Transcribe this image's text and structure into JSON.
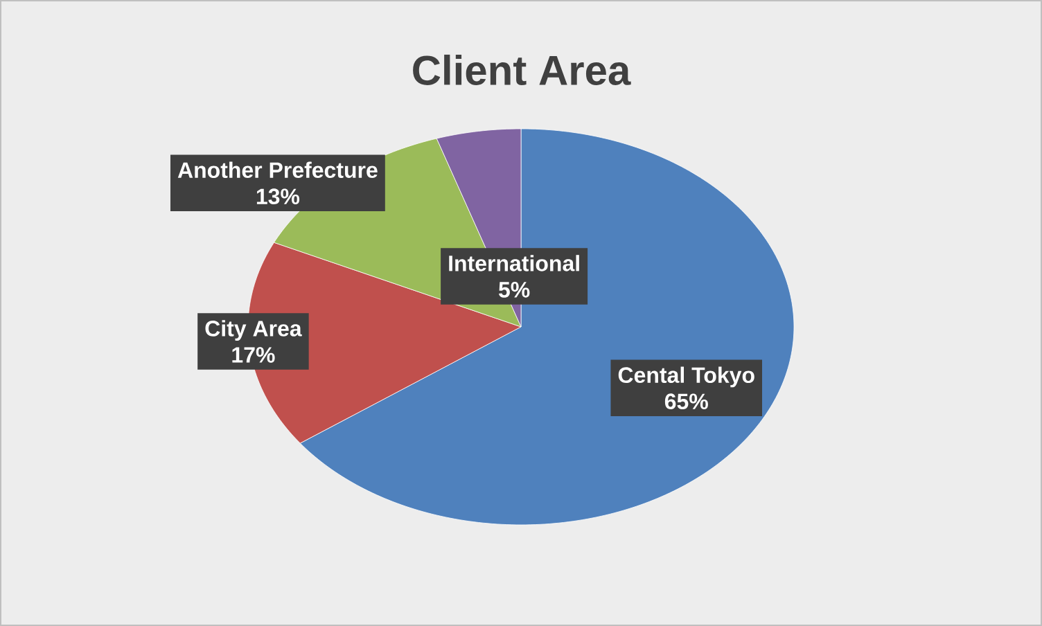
{
  "chart_data": {
    "type": "pie",
    "title": "Client Area",
    "categories": [
      "Cental Tokyo",
      "City Area",
      "Another Prefecture",
      "International"
    ],
    "values": [
      65,
      17,
      13,
      5
    ],
    "colors": [
      "#4f81bd",
      "#c0504d",
      "#9bbb59",
      "#8064a2"
    ],
    "value_labels": [
      "65%",
      "17%",
      "13%",
      "5%"
    ]
  }
}
